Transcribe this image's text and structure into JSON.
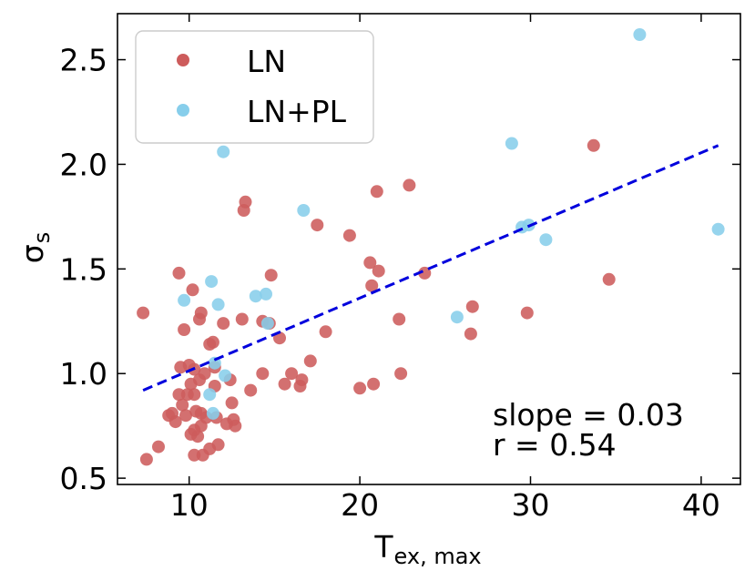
{
  "chart_data": {
    "type": "scatter",
    "xlabel_main": "T",
    "xlabel_sub": "ex, max",
    "ylabel_main": "σ",
    "ylabel_sub": "s",
    "xlim": [
      5.8,
      42.3
    ],
    "ylim": [
      0.47,
      2.72
    ],
    "x_ticks": [
      10,
      20,
      30,
      40
    ],
    "y_ticks": [
      0.5,
      1.0,
      1.5,
      2.0,
      2.5
    ],
    "x_tick_labels": [
      "10",
      "20",
      "30",
      "40"
    ],
    "y_tick_labels": [
      "0.5",
      "1.0",
      "1.5",
      "2.0",
      "2.5"
    ],
    "legend_position": "top-left",
    "annotations": {
      "slope": "slope = 0.03",
      "r": "r = 0.54"
    },
    "fit_line": {
      "x": [
        7.3,
        41.0
      ],
      "y": [
        0.92,
        2.09
      ],
      "color": "#0000dd",
      "style": "dashed"
    },
    "series": [
      {
        "name": "LN",
        "color": "#cd5c5c",
        "points": [
          [
            7.3,
            1.29
          ],
          [
            7.5,
            0.59
          ],
          [
            8.2,
            0.65
          ],
          [
            8.8,
            0.8
          ],
          [
            9.0,
            0.81
          ],
          [
            9.2,
            0.77
          ],
          [
            9.4,
            1.48
          ],
          [
            9.4,
            0.9
          ],
          [
            9.5,
            1.03
          ],
          [
            9.6,
            0.85
          ],
          [
            9.7,
            1.21
          ],
          [
            9.8,
            0.8
          ],
          [
            9.9,
            0.9
          ],
          [
            10.0,
            1.04
          ],
          [
            10.1,
            0.95
          ],
          [
            10.1,
            0.71
          ],
          [
            10.2,
            1.4
          ],
          [
            10.3,
            1.02
          ],
          [
            10.3,
            0.9
          ],
          [
            10.3,
            0.73
          ],
          [
            10.3,
            0.61
          ],
          [
            10.4,
            0.82
          ],
          [
            10.5,
            0.7
          ],
          [
            10.6,
            1.26
          ],
          [
            10.6,
            0.97
          ],
          [
            10.7,
            1.29
          ],
          [
            10.7,
            0.81
          ],
          [
            10.7,
            0.75
          ],
          [
            10.8,
            0.61
          ],
          [
            10.9,
            1.0
          ],
          [
            11.0,
            0.79
          ],
          [
            11.2,
            1.14
          ],
          [
            11.2,
            0.64
          ],
          [
            11.4,
            1.15
          ],
          [
            11.5,
            1.03
          ],
          [
            11.5,
            0.94
          ],
          [
            11.6,
            0.79
          ],
          [
            11.7,
            0.66
          ],
          [
            12.0,
            1.24
          ],
          [
            12.2,
            0.76
          ],
          [
            12.4,
            0.97
          ],
          [
            12.5,
            0.86
          ],
          [
            12.6,
            0.78
          ],
          [
            12.7,
            0.75
          ],
          [
            13.1,
            1.26
          ],
          [
            13.2,
            1.78
          ],
          [
            13.3,
            1.82
          ],
          [
            13.6,
            0.92
          ],
          [
            14.3,
            1.0
          ],
          [
            14.3,
            1.25
          ],
          [
            14.7,
            1.24
          ],
          [
            14.8,
            1.47
          ],
          [
            15.3,
            1.17
          ],
          [
            15.6,
            0.95
          ],
          [
            16.0,
            1.0
          ],
          [
            16.5,
            0.94
          ],
          [
            16.6,
            0.97
          ],
          [
            17.1,
            1.06
          ],
          [
            17.5,
            1.71
          ],
          [
            18.0,
            1.2
          ],
          [
            19.4,
            1.66
          ],
          [
            20.0,
            0.93
          ],
          [
            20.6,
            1.53
          ],
          [
            20.7,
            1.42
          ],
          [
            20.8,
            0.95
          ],
          [
            21.0,
            1.87
          ],
          [
            21.1,
            1.49
          ],
          [
            22.3,
            1.26
          ],
          [
            22.4,
            1.0
          ],
          [
            22.9,
            1.9
          ],
          [
            23.8,
            1.48
          ],
          [
            26.5,
            1.19
          ],
          [
            26.6,
            1.32
          ],
          [
            29.8,
            1.29
          ],
          [
            33.7,
            2.09
          ],
          [
            34.6,
            1.45
          ]
        ]
      },
      {
        "name": "LN+PL",
        "color": "#87ceeb",
        "points": [
          [
            9.7,
            1.35
          ],
          [
            11.2,
            0.9
          ],
          [
            11.3,
            1.44
          ],
          [
            11.4,
            0.81
          ],
          [
            11.5,
            1.05
          ],
          [
            11.7,
            1.33
          ],
          [
            12.0,
            2.06
          ],
          [
            12.1,
            0.99
          ],
          [
            13.9,
            1.37
          ],
          [
            14.5,
            1.38
          ],
          [
            14.6,
            1.24
          ],
          [
            16.7,
            1.78
          ],
          [
            25.7,
            1.27
          ],
          [
            28.9,
            2.1
          ],
          [
            29.5,
            1.7
          ],
          [
            29.9,
            1.71
          ],
          [
            30.9,
            1.64
          ],
          [
            36.4,
            2.62
          ],
          [
            41.0,
            1.69
          ]
        ]
      }
    ]
  }
}
